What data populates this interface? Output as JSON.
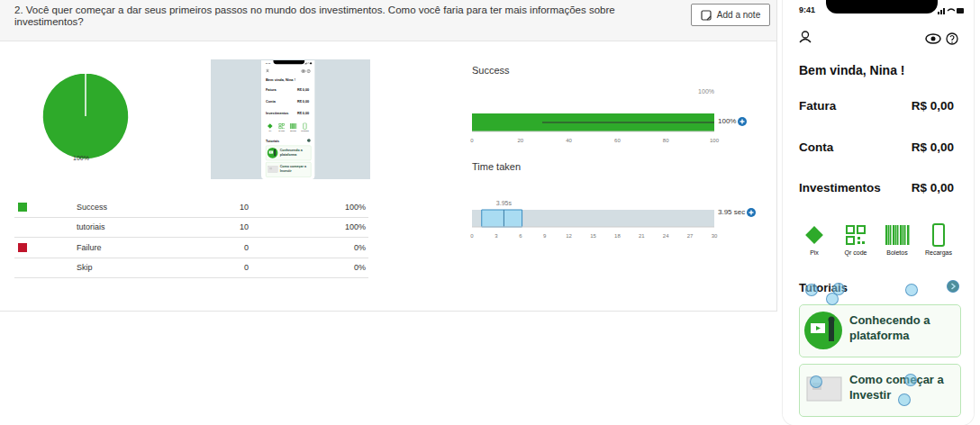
{
  "header": {
    "question": "2. Você quer começar a dar seus primeiros passos no mundo dos investimentos. Como você faria para ter mais informações sobre investimentos?",
    "button": "Add a note"
  },
  "chart_data": [
    {
      "type": "pie",
      "values": [
        100
      ],
      "colors": [
        "#2eaa2a"
      ],
      "value_labels": [
        "100%"
      ]
    },
    {
      "type": "bar",
      "orientation": "horizontal",
      "title": "Success",
      "values": [
        100
      ],
      "value_labels": [
        "100%"
      ],
      "error": [
        29,
        100
      ],
      "error_label": "100%",
      "color": "#2eaa2a",
      "xlim": [
        0,
        100
      ],
      "xticks": [
        0,
        20,
        40,
        60,
        80,
        100
      ]
    },
    {
      "type": "box",
      "orientation": "horizontal",
      "title": "Time taken",
      "q1": 1.2,
      "median": 3.95,
      "q3": 6.2,
      "median_label": "3.95s",
      "value_label": "3.95 sec",
      "color": "#a9dcf2",
      "xlim": [
        0,
        30
      ],
      "xticks": [
        0,
        3,
        6,
        9,
        12,
        15,
        18,
        21,
        24,
        27,
        30
      ]
    }
  ],
  "table": {
    "rows": [
      {
        "label": "Success",
        "count": 10,
        "percent": "100%",
        "color": "#2eaa2a"
      },
      {
        "label": "tutoriais",
        "count": 10,
        "percent": "100%",
        "color": null
      },
      {
        "label": "Failure",
        "count": 0,
        "percent": "0%",
        "color": "#c0142b"
      },
      {
        "label": "Skip",
        "count": 0,
        "percent": "0%",
        "color": null
      }
    ]
  },
  "phone": {
    "time": "9:41",
    "greeting": "Bem vinda, Nina !",
    "rows": [
      {
        "label": "Fatura",
        "value": "R$ 0,00"
      },
      {
        "label": "Conta",
        "value": "R$ 0,00"
      },
      {
        "label": "Investimentos",
        "value": "R$ 0,00"
      }
    ],
    "actions": [
      "Pix",
      "Qr code",
      "Boletos",
      "Recargas"
    ],
    "section": "Tutoriais",
    "cards": [
      [
        "Conhecendo a",
        "plataforma"
      ],
      [
        "Como começar a",
        "Investir"
      ]
    ]
  }
}
